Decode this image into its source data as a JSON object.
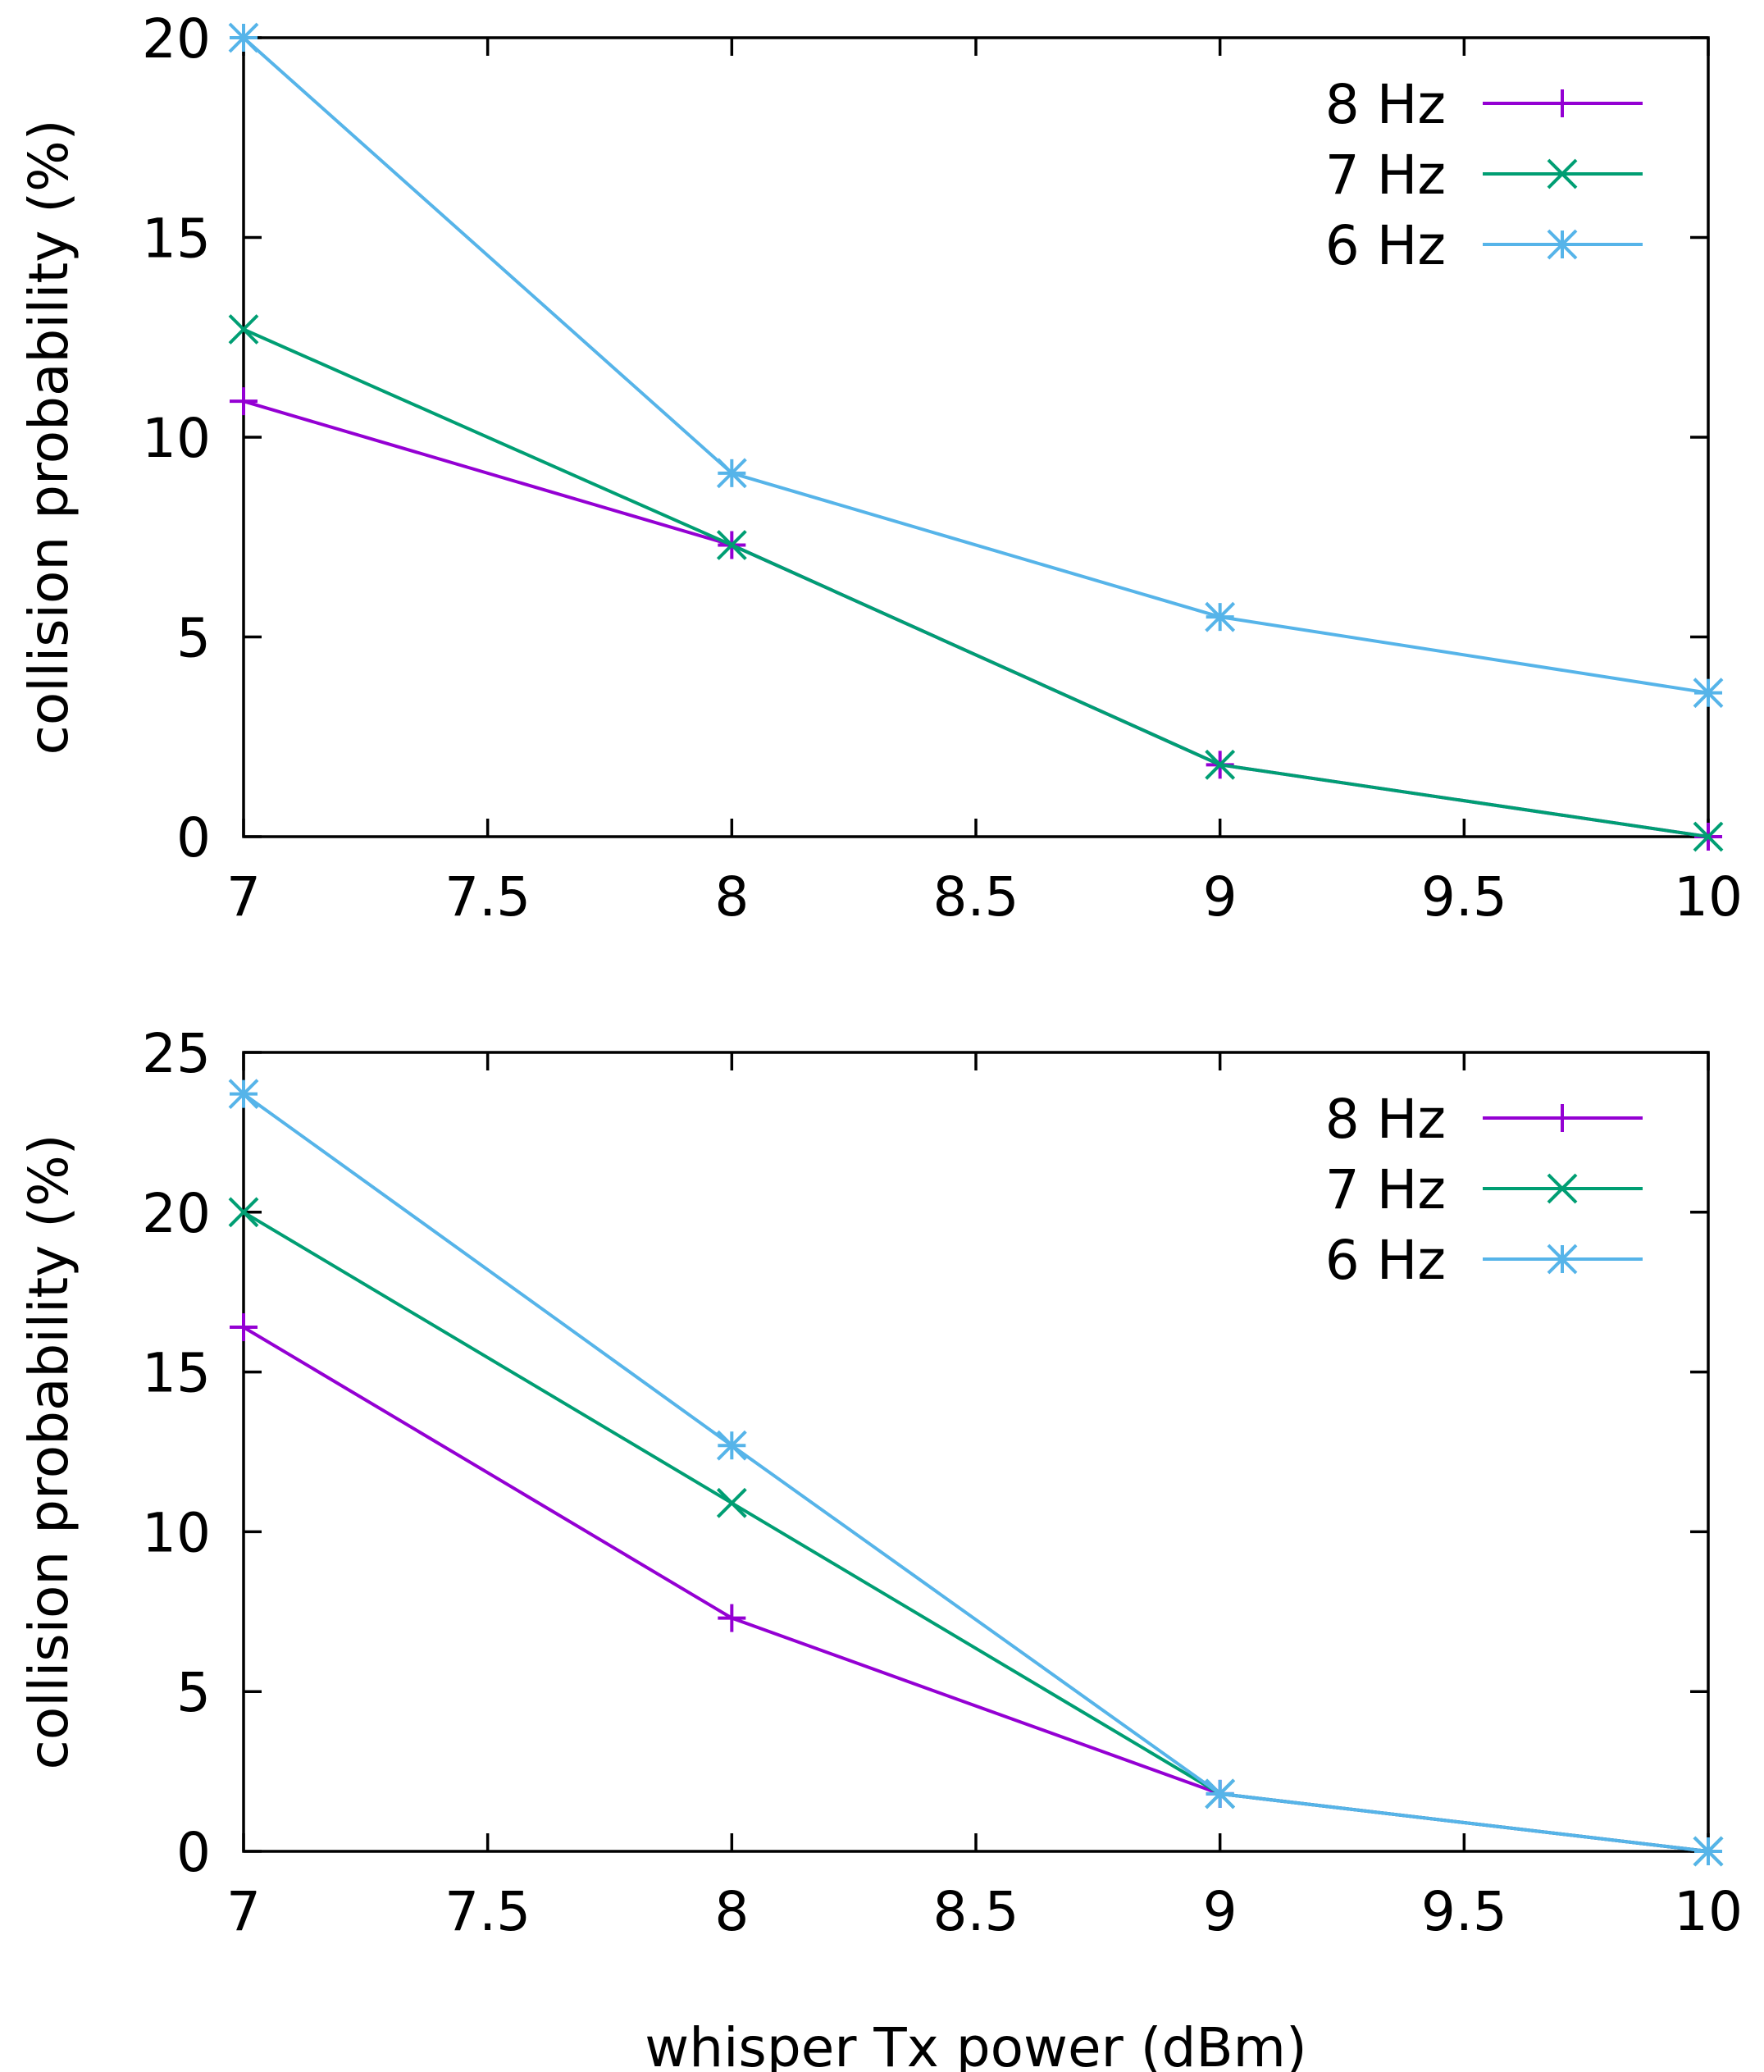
{
  "chart_data": [
    {
      "type": "line",
      "title": "",
      "xlabel": "",
      "ylabel": "collision probability (%)",
      "xlim": [
        7,
        10
      ],
      "ylim": [
        0,
        20
      ],
      "xticks": [
        7,
        7.5,
        8,
        8.5,
        9,
        9.5,
        10
      ],
      "xtick_labels": [
        "7",
        "7.5",
        "8",
        "8.5",
        "9",
        "9.5",
        "10"
      ],
      "yticks": [
        0,
        5,
        10,
        15,
        20
      ],
      "ytick_labels": [
        "0",
        "5",
        "10",
        "15",
        "20"
      ],
      "grid": false,
      "legend_position": "top-right",
      "series": [
        {
          "name": "8 Hz",
          "color": "#9400d3",
          "marker": "plus",
          "x": [
            7,
            8,
            9,
            10
          ],
          "values": [
            10.9,
            7.3,
            1.8,
            0
          ]
        },
        {
          "name": "7 Hz",
          "color": "#009e73",
          "marker": "cross",
          "x": [
            7,
            8,
            9,
            10
          ],
          "values": [
            12.7,
            7.3,
            1.8,
            0
          ]
        },
        {
          "name": "6 Hz",
          "color": "#56b4e9",
          "marker": "star",
          "x": [
            7,
            8,
            9,
            10
          ],
          "values": [
            20.0,
            9.1,
            5.5,
            3.6
          ]
        }
      ]
    },
    {
      "type": "line",
      "title": "",
      "xlabel": "whisper Tx power (dBm)",
      "ylabel": "collision probability (%)",
      "xlim": [
        7,
        10
      ],
      "ylim": [
        0,
        25
      ],
      "xticks": [
        7,
        7.5,
        8,
        8.5,
        9,
        9.5,
        10
      ],
      "xtick_labels": [
        "7",
        "7.5",
        "8",
        "8.5",
        "9",
        "9.5",
        "10"
      ],
      "yticks": [
        0,
        5,
        10,
        15,
        20,
        25
      ],
      "ytick_labels": [
        "0",
        "5",
        "10",
        "15",
        "20",
        "25"
      ],
      "grid": false,
      "legend_position": "top-right",
      "series": [
        {
          "name": "8 Hz",
          "color": "#9400d3",
          "marker": "plus",
          "x": [
            7,
            8,
            9,
            10
          ],
          "values": [
            16.4,
            7.3,
            1.8,
            0
          ]
        },
        {
          "name": "7 Hz",
          "color": "#009e73",
          "marker": "cross",
          "x": [
            7,
            8,
            9,
            10
          ],
          "values": [
            20.0,
            10.9,
            1.8,
            0
          ]
        },
        {
          "name": "6 Hz",
          "color": "#56b4e9",
          "marker": "star",
          "x": [
            7,
            8,
            9,
            10
          ],
          "values": [
            23.7,
            12.7,
            1.8,
            0
          ]
        }
      ]
    }
  ]
}
